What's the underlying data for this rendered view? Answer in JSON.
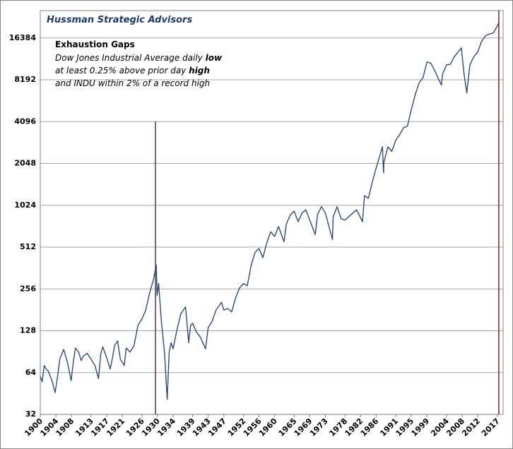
{
  "chart_data": {
    "type": "line",
    "title": "Hussman Strategic Advisors",
    "annotation_title": "Exhaustion Gaps",
    "annotation_lines": [
      [
        "Dow Jones Industrial Average daily ",
        "low"
      ],
      [
        "at least 0.25% above prior day ",
        "high"
      ],
      [
        "and INDU within 2% of a record high"
      ]
    ],
    "log_scale": true,
    "log_base": 2,
    "grid": true,
    "xlim": [
      1900,
      2018.5
    ],
    "xticks": [
      1900,
      1904,
      1908,
      1913,
      1917,
      1921,
      1926,
      1930,
      1934,
      1939,
      1943,
      1947,
      1952,
      1956,
      1960,
      1965,
      1969,
      1973,
      1978,
      1982,
      1986,
      1991,
      1995,
      1999,
      2004,
      2008,
      2012,
      2017
    ],
    "ylim": [
      32,
      25800
    ],
    "yticks": [
      32,
      64,
      128,
      256,
      512,
      1024,
      2048,
      4096,
      8192,
      16384
    ],
    "x": [
      1900,
      1900.5,
      1901,
      1901.5,
      1902,
      1903,
      1903.8,
      1904.5,
      1905,
      1906,
      1907,
      1907.9,
      1908.5,
      1909,
      1909.8,
      1910.5,
      1911,
      1912,
      1913,
      1914,
      1914.9,
      1915.5,
      1916,
      1917,
      1917.9,
      1918.5,
      1919,
      1919.8,
      1920.5,
      1921.5,
      1922,
      1923,
      1924,
      1925,
      1926,
      1927,
      1928,
      1929,
      1929.7,
      1929.9,
      1930.3,
      1931,
      1931.8,
      1932.5,
      1933,
      1933.5,
      1934,
      1935,
      1936,
      1937.2,
      1938,
      1938.5,
      1939,
      1940,
      1941,
      1942.3,
      1943,
      1944,
      1945,
      1946.4,
      1947,
      1948,
      1949,
      1950,
      1951,
      1952,
      1953,
      1954,
      1955,
      1956,
      1957,
      1958,
      1959,
      1960,
      1961,
      1962.4,
      1963,
      1964,
      1965,
      1966,
      1967,
      1968,
      1969,
      1970.4,
      1971,
      1972,
      1973,
      1974.8,
      1975,
      1976,
      1977,
      1978,
      1979,
      1980,
      1981,
      1982.5,
      1983,
      1984,
      1985,
      1986,
      1987.6,
      1987.9,
      1988,
      1989,
      1990,
      1991,
      1992,
      1993,
      1994,
      1995,
      1996,
      1997,
      1998,
      1999,
      2000,
      2001,
      2002.7,
      2003,
      2004,
      2005,
      2006,
      2007.8,
      2008.5,
      2009.2,
      2010,
      2011,
      2012,
      2013,
      2014,
      2015,
      2016,
      2017,
      2017.5
    ],
    "series": [
      {
        "name": "Dow Jones Industrial Average",
        "color": "#2e4a7a",
        "values": [
          60,
          55,
          72,
          68,
          66,
          56,
          46,
          62,
          80,
          94,
          75,
          56,
          78,
          96,
          90,
          78,
          84,
          88,
          80,
          72,
          58,
          88,
          98,
          82,
          68,
          82,
          100,
          108,
          80,
          72,
          96,
          90,
          100,
          140,
          155,
          180,
          240,
          300,
          381,
          230,
          280,
          150,
          90,
          41,
          90,
          105,
          95,
          130,
          170,
          190,
          105,
          140,
          145,
          125,
          115,
          95,
          135,
          150,
          180,
          205,
          180,
          185,
          175,
          220,
          260,
          280,
          270,
          380,
          470,
          500,
          430,
          550,
          660,
          610,
          720,
          560,
          750,
          870,
          930,
          780,
          900,
          950,
          800,
          630,
          880,
          1000,
          900,
          580,
          850,
          1000,
          820,
          800,
          850,
          900,
          950,
          780,
          1200,
          1150,
          1500,
          1900,
          2700,
          1750,
          2100,
          2700,
          2500,
          3000,
          3300,
          3700,
          3800,
          5000,
          6400,
          7800,
          8500,
          11000,
          10800,
          9500,
          7500,
          9000,
          10500,
          10600,
          12000,
          13900,
          9000,
          6600,
          10500,
          12000,
          13000,
          15500,
          17000,
          17500,
          17800,
          20000,
          21500
        ]
      }
    ],
    "signals": [
      1929.5,
      2017.4
    ],
    "signal_tops": [
      4096,
      25800
    ],
    "signal_colors": [
      "#5a3a3a",
      "#7a2020"
    ]
  }
}
